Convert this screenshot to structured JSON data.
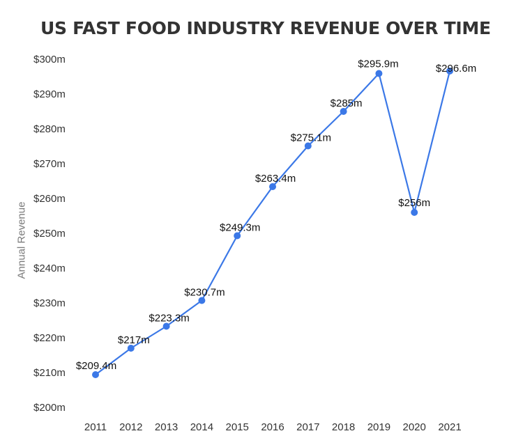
{
  "chart_data": {
    "type": "line",
    "title": "US FAST FOOD INDUSTRY REVENUE OVER TIME",
    "xlabel": "",
    "ylabel": "Annual Revenue",
    "categories": [
      "2011",
      "2012",
      "2013",
      "2014",
      "2015",
      "2016",
      "2017",
      "2018",
      "2019",
      "2020",
      "2021"
    ],
    "series": [
      {
        "values": [
          209.4,
          217,
          223.3,
          230.7,
          249.3,
          263.4,
          275.1,
          285,
          295.9,
          256,
          296.6
        ],
        "data_labels": [
          "$209.4m",
          "$217m",
          "$223.3m",
          "$230.7m",
          "$249.3m",
          "$263.4m",
          "$275.1m",
          "$285m",
          "$295.9m",
          "$256m",
          "$296.6m"
        ],
        "color": "#3b78e7"
      }
    ],
    "ylim": [
      200,
      300
    ],
    "yticks": [
      200,
      210,
      220,
      230,
      240,
      250,
      260,
      270,
      280,
      290,
      300
    ],
    "ytick_labels": [
      "$200m",
      "$210m",
      "$220m",
      "$230m",
      "$240m",
      "$250m",
      "$260m",
      "$270m",
      "$280m",
      "$290m",
      "$300m"
    ],
    "grid": false,
    "legend": "none"
  }
}
